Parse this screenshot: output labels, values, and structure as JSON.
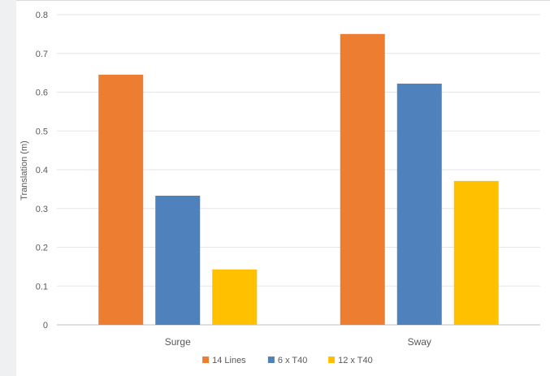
{
  "chart_data": {
    "type": "bar",
    "title": "",
    "xlabel": "",
    "ylabel": "Translation (m)",
    "categories": [
      "Surge",
      "Sway"
    ],
    "series": [
      {
        "name": "14 Lines",
        "values": [
          0.645,
          0.75
        ]
      },
      {
        "name": "6 x T40",
        "values": [
          0.333,
          0.622
        ]
      },
      {
        "name": "12 x T40",
        "values": [
          0.143,
          0.371
        ]
      }
    ],
    "ylim": [
      0,
      0.8
    ],
    "yticks": [
      "0",
      "0.1",
      "0.2",
      "0.3",
      "0.4",
      "0.5",
      "0.6",
      "0.7",
      "0.8"
    ],
    "grid": true,
    "legend": "bottom",
    "colors": [
      "#ed7d31",
      "#4f81bd",
      "#ffc000"
    ]
  }
}
